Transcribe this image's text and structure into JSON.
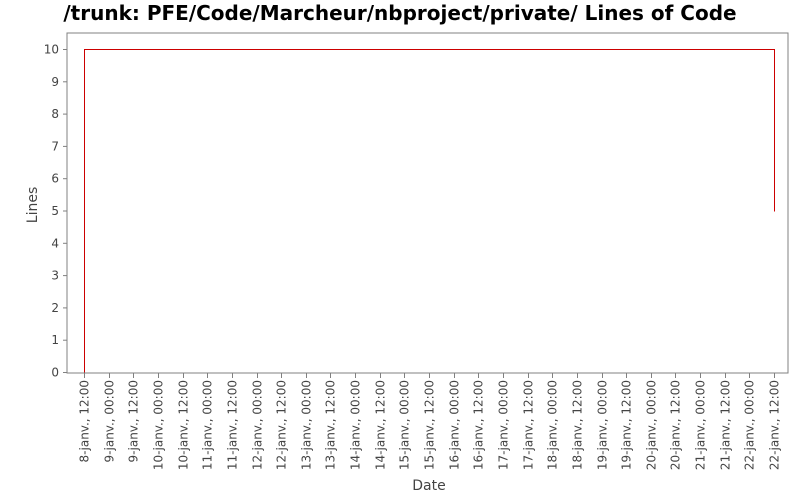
{
  "chart_data": {
    "type": "line",
    "title": "/trunk: PFE/Code/Marcheur/nbproject/private/ Lines of Code",
    "xlabel": "Date",
    "ylabel": "Lines",
    "ylim": [
      0,
      10
    ],
    "yticks": [
      0,
      1,
      2,
      3,
      4,
      5,
      6,
      7,
      8,
      9,
      10
    ],
    "xlim": [
      "2008-01-08 12:00",
      "2008-01-22 12:00"
    ],
    "xtick_labels": [
      "8-janv., 12:00",
      "9-janv., 00:00",
      "9-janv., 12:00",
      "10-janv., 00:00",
      "10-janv., 12:00",
      "11-janv., 00:00",
      "11-janv., 12:00",
      "12-janv., 00:00",
      "12-janv., 12:00",
      "13-janv., 00:00",
      "13-janv., 12:00",
      "14-janv., 00:00",
      "14-janv., 12:00",
      "15-janv., 00:00",
      "15-janv., 12:00",
      "16-janv., 00:00",
      "16-janv., 12:00",
      "17-janv., 00:00",
      "17-janv., 12:00",
      "18-janv., 00:00",
      "18-janv., 12:00",
      "19-janv., 00:00",
      "19-janv., 12:00",
      "20-janv., 00:00",
      "20-janv., 12:00",
      "21-janv., 00:00",
      "21-janv., 12:00",
      "22-janv., 00:00",
      "22-janv., 12:00"
    ],
    "grid": false,
    "series": [
      {
        "color": "#cc0000",
        "step": true,
        "points": [
          {
            "x": "8-janv., 12:00",
            "y": 0
          },
          {
            "x": "8-janv., 12:00",
            "y": 10
          },
          {
            "x": "22-janv., 12:00",
            "y": 10
          },
          {
            "x": "22-janv., 12:00",
            "y": 5
          }
        ]
      }
    ]
  },
  "colors": {
    "line": "#cc0000",
    "axis": "#808080",
    "text": "#444444"
  }
}
